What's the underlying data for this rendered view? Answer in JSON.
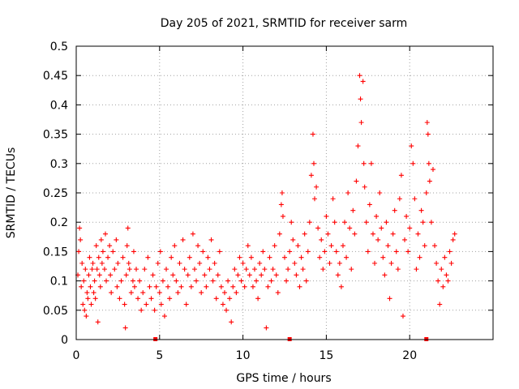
{
  "chart_data": {
    "type": "scatter",
    "title": "Day 205 of 2021, SRMTID for receiver sarm",
    "xlabel": "GPS time / hours",
    "ylabel": "SRMTID / TECUs",
    "xlim": [
      0,
      25
    ],
    "ylim": [
      0,
      0.5
    ],
    "xticks": [
      0,
      5,
      10,
      15,
      20
    ],
    "xtick_labels": [
      "0",
      "5",
      "10",
      "15",
      "20"
    ],
    "yticks": [
      0,
      0.05,
      0.1,
      0.15,
      0.2,
      0.25,
      0.3,
      0.35,
      0.4,
      0.45,
      0.5
    ],
    "ytick_labels": [
      "0",
      "0.05",
      "0.1",
      "0.15",
      "0.2",
      "0.25",
      "0.3",
      "0.35",
      "0.4",
      "0.45",
      "0.5"
    ],
    "grid": true,
    "marker": "+",
    "color": "#ff0000",
    "series": [
      {
        "name": "SRMTID",
        "points": [
          [
            0.1,
            0.11
          ],
          [
            0.15,
            0.15
          ],
          [
            0.2,
            0.19
          ],
          [
            0.25,
            0.17
          ],
          [
            0.3,
            0.09
          ],
          [
            0.35,
            0.13
          ],
          [
            0.4,
            0.06
          ],
          [
            0.45,
            0.1
          ],
          [
            0.5,
            0.05
          ],
          [
            0.55,
            0.12
          ],
          [
            0.6,
            0.04
          ],
          [
            0.65,
            0.08
          ],
          [
            0.7,
            0.07
          ],
          [
            0.75,
            0.11
          ],
          [
            0.8,
            0.14
          ],
          [
            0.85,
            0.09
          ],
          [
            0.9,
            0.06
          ],
          [
            0.95,
            0.12
          ],
          [
            1.0,
            0.13
          ],
          [
            1.05,
            0.08
          ],
          [
            1.1,
            0.1
          ],
          [
            1.15,
            0.07
          ],
          [
            1.2,
            0.16
          ],
          [
            1.25,
            0.12
          ],
          [
            1.3,
            0.03
          ],
          [
            1.35,
            0.14
          ],
          [
            1.4,
            0.11
          ],
          [
            1.45,
            0.09
          ],
          [
            1.5,
            0.17
          ],
          [
            1.55,
            0.13
          ],
          [
            1.6,
            0.15
          ],
          [
            1.7,
            0.12
          ],
          [
            1.75,
            0.18
          ],
          [
            1.8,
            0.1
          ],
          [
            1.9,
            0.14
          ],
          [
            2.0,
            0.16
          ],
          [
            2.05,
            0.11
          ],
          [
            2.1,
            0.08
          ],
          [
            2.2,
            0.15
          ],
          [
            2.3,
            0.12
          ],
          [
            2.4,
            0.17
          ],
          [
            2.45,
            0.09
          ],
          [
            2.5,
            0.13
          ],
          [
            2.6,
            0.07
          ],
          [
            2.7,
            0.1
          ],
          [
            2.8,
            0.14
          ],
          [
            2.9,
            0.06
          ],
          [
            2.95,
            0.02
          ],
          [
            3.0,
            0.11
          ],
          [
            3.05,
            0.16
          ],
          [
            3.1,
            0.19
          ],
          [
            3.15,
            0.13
          ],
          [
            3.2,
            0.12
          ],
          [
            3.3,
            0.08
          ],
          [
            3.4,
            0.1
          ],
          [
            3.45,
            0.15
          ],
          [
            3.5,
            0.09
          ],
          [
            3.6,
            0.12
          ],
          [
            3.7,
            0.07
          ],
          [
            3.8,
            0.1
          ],
          [
            3.9,
            0.05
          ],
          [
            4.0,
            0.08
          ],
          [
            4.1,
            0.12
          ],
          [
            4.2,
            0.06
          ],
          [
            4.3,
            0.14
          ],
          [
            4.4,
            0.09
          ],
          [
            4.5,
            0.07
          ],
          [
            4.6,
            0.11
          ],
          [
            4.7,
            0.05
          ],
          [
            4.8,
            0.09
          ],
          [
            4.9,
            0.13
          ],
          [
            5.0,
            0.08
          ],
          [
            5.05,
            0.15
          ],
          [
            5.1,
            0.06
          ],
          [
            5.2,
            0.1
          ],
          [
            5.3,
            0.04
          ],
          [
            5.4,
            0.12
          ],
          [
            5.5,
            0.09
          ],
          [
            5.6,
            0.07
          ],
          [
            5.7,
            0.14
          ],
          [
            5.8,
            0.11
          ],
          [
            5.9,
            0.16
          ],
          [
            6.0,
            0.1
          ],
          [
            6.1,
            0.08
          ],
          [
            6.2,
            0.13
          ],
          [
            6.3,
            0.09
          ],
          [
            6.4,
            0.17
          ],
          [
            6.5,
            0.12
          ],
          [
            6.6,
            0.06
          ],
          [
            6.7,
            0.11
          ],
          [
            6.8,
            0.14
          ],
          [
            6.9,
            0.09
          ],
          [
            7.0,
            0.18
          ],
          [
            7.1,
            0.12
          ],
          [
            7.2,
            0.1
          ],
          [
            7.3,
            0.16
          ],
          [
            7.4,
            0.13
          ],
          [
            7.5,
            0.08
          ],
          [
            7.6,
            0.15
          ],
          [
            7.7,
            0.11
          ],
          [
            7.8,
            0.09
          ],
          [
            7.9,
            0.14
          ],
          [
            8.0,
            0.12
          ],
          [
            8.1,
            0.17
          ],
          [
            8.2,
            0.1
          ],
          [
            8.3,
            0.13
          ],
          [
            8.4,
            0.07
          ],
          [
            8.5,
            0.11
          ],
          [
            8.6,
            0.15
          ],
          [
            8.7,
            0.09
          ],
          [
            8.8,
            0.06
          ],
          [
            8.9,
            0.08
          ],
          [
            9.0,
            0.05
          ],
          [
            9.1,
            0.1
          ],
          [
            9.2,
            0.07
          ],
          [
            9.3,
            0.03
          ],
          [
            9.4,
            0.09
          ],
          [
            9.5,
            0.12
          ],
          [
            9.6,
            0.08
          ],
          [
            9.7,
            0.11
          ],
          [
            9.8,
            0.14
          ],
          [
            9.9,
            0.1
          ],
          [
            10.0,
            0.13
          ],
          [
            10.1,
            0.09
          ],
          [
            10.2,
            0.12
          ],
          [
            10.3,
            0.16
          ],
          [
            10.4,
            0.11
          ],
          [
            10.5,
            0.14
          ],
          [
            10.6,
            0.09
          ],
          [
            10.7,
            0.12
          ],
          [
            10.8,
            0.1
          ],
          [
            10.9,
            0.07
          ],
          [
            11.0,
            0.13
          ],
          [
            11.1,
            0.11
          ],
          [
            11.2,
            0.15
          ],
          [
            11.3,
            0.12
          ],
          [
            11.4,
            0.02
          ],
          [
            11.5,
            0.09
          ],
          [
            11.6,
            0.14
          ],
          [
            11.7,
            0.1
          ],
          [
            11.8,
            0.12
          ],
          [
            11.9,
            0.16
          ],
          [
            12.0,
            0.11
          ],
          [
            12.1,
            0.08
          ],
          [
            12.2,
            0.18
          ],
          [
            12.3,
            0.23
          ],
          [
            12.35,
            0.25
          ],
          [
            12.4,
            0.21
          ],
          [
            12.5,
            0.14
          ],
          [
            12.6,
            0.1
          ],
          [
            12.7,
            0.12
          ],
          [
            12.8,
            0.15
          ],
          [
            12.9,
            0.2
          ],
          [
            13.0,
            0.17
          ],
          [
            13.1,
            0.13
          ],
          [
            13.2,
            0.11
          ],
          [
            13.3,
            0.16
          ],
          [
            13.4,
            0.09
          ],
          [
            13.5,
            0.14
          ],
          [
            13.6,
            0.12
          ],
          [
            13.7,
            0.18
          ],
          [
            13.8,
            0.1
          ],
          [
            13.9,
            0.15
          ],
          [
            14.0,
            0.2
          ],
          [
            14.1,
            0.28
          ],
          [
            14.2,
            0.35
          ],
          [
            14.25,
            0.3
          ],
          [
            14.3,
            0.24
          ],
          [
            14.4,
            0.26
          ],
          [
            14.5,
            0.19
          ],
          [
            14.6,
            0.14
          ],
          [
            14.7,
            0.17
          ],
          [
            14.8,
            0.12
          ],
          [
            14.9,
            0.15
          ],
          [
            15.0,
            0.21
          ],
          [
            15.1,
            0.18
          ],
          [
            15.2,
            0.13
          ],
          [
            15.3,
            0.16
          ],
          [
            15.4,
            0.24
          ],
          [
            15.5,
            0.2
          ],
          [
            15.6,
            0.15
          ],
          [
            15.7,
            0.11
          ],
          [
            15.8,
            0.13
          ],
          [
            15.9,
            0.09
          ],
          [
            16.0,
            0.16
          ],
          [
            16.1,
            0.2
          ],
          [
            16.2,
            0.14
          ],
          [
            16.3,
            0.25
          ],
          [
            16.4,
            0.19
          ],
          [
            16.5,
            0.12
          ],
          [
            16.6,
            0.22
          ],
          [
            16.7,
            0.18
          ],
          [
            16.8,
            0.27
          ],
          [
            16.9,
            0.33
          ],
          [
            17.0,
            0.45
          ],
          [
            17.05,
            0.41
          ],
          [
            17.1,
            0.37
          ],
          [
            17.2,
            0.44
          ],
          [
            17.25,
            0.3
          ],
          [
            17.3,
            0.26
          ],
          [
            17.4,
            0.2
          ],
          [
            17.5,
            0.15
          ],
          [
            17.6,
            0.23
          ],
          [
            17.7,
            0.3
          ],
          [
            17.8,
            0.18
          ],
          [
            17.9,
            0.13
          ],
          [
            18.0,
            0.21
          ],
          [
            18.1,
            0.17
          ],
          [
            18.2,
            0.25
          ],
          [
            18.3,
            0.19
          ],
          [
            18.4,
            0.14
          ],
          [
            18.5,
            0.11
          ],
          [
            18.6,
            0.2
          ],
          [
            18.7,
            0.16
          ],
          [
            18.8,
            0.07
          ],
          [
            18.9,
            0.13
          ],
          [
            19.0,
            0.18
          ],
          [
            19.1,
            0.22
          ],
          [
            19.2,
            0.15
          ],
          [
            19.3,
            0.12
          ],
          [
            19.4,
            0.24
          ],
          [
            19.5,
            0.28
          ],
          [
            19.6,
            0.04
          ],
          [
            19.7,
            0.17
          ],
          [
            19.8,
            0.21
          ],
          [
            19.9,
            0.15
          ],
          [
            20.0,
            0.19
          ],
          [
            20.1,
            0.33
          ],
          [
            20.2,
            0.3
          ],
          [
            20.3,
            0.24
          ],
          [
            20.4,
            0.12
          ],
          [
            20.5,
            0.18
          ],
          [
            20.6,
            0.14
          ],
          [
            20.7,
            0.22
          ],
          [
            20.8,
            0.2
          ],
          [
            20.9,
            0.16
          ],
          [
            21.0,
            0.25
          ],
          [
            21.05,
            0.37
          ],
          [
            21.1,
            0.35
          ],
          [
            21.15,
            0.3
          ],
          [
            21.2,
            0.27
          ],
          [
            21.3,
            0.2
          ],
          [
            21.4,
            0.29
          ],
          [
            21.5,
            0.16
          ],
          [
            21.6,
            0.13
          ],
          [
            21.7,
            0.1
          ],
          [
            21.8,
            0.06
          ],
          [
            21.9,
            0.12
          ],
          [
            22.0,
            0.09
          ],
          [
            22.1,
            0.14
          ],
          [
            22.2,
            0.11
          ],
          [
            22.3,
            0.1
          ],
          [
            22.4,
            0.15
          ],
          [
            22.5,
            0.13
          ],
          [
            22.6,
            0.17
          ],
          [
            22.7,
            0.18
          ]
        ]
      }
    ],
    "axis_markers": [
      {
        "x": 4.75
      },
      {
        "x": 12.8
      },
      {
        "x": 21.0
      }
    ]
  }
}
